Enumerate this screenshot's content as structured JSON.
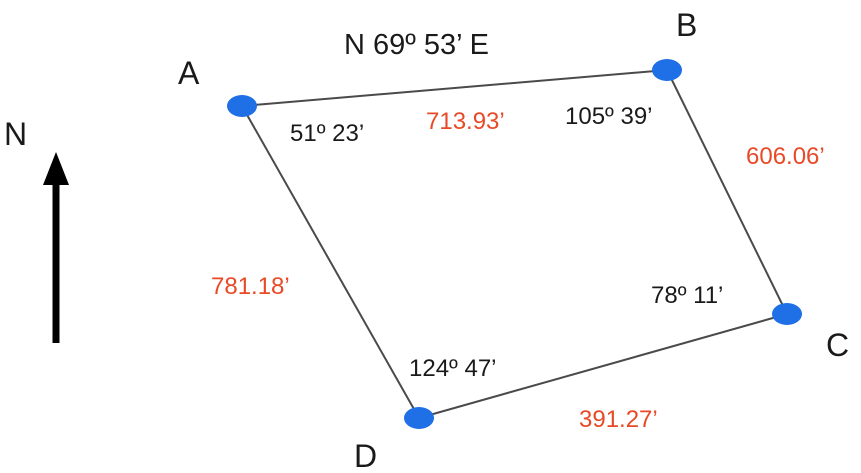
{
  "bearing": "N 69º 53’ E",
  "north_label": "N",
  "colors": {
    "edge": "#4a4a4a",
    "vertex": "#1f6fe6",
    "distance": "#e84a27",
    "text": "#1a1a1a",
    "arrow": "#000000"
  },
  "vertices": [
    {
      "id": "A",
      "label": "A"
    },
    {
      "id": "B",
      "label": "B"
    },
    {
      "id": "C",
      "label": "C"
    },
    {
      "id": "D",
      "label": "D"
    }
  ],
  "angles": [
    {
      "vertex": "A",
      "text": "51º 23’"
    },
    {
      "vertex": "B",
      "text": "105º 39’"
    },
    {
      "vertex": "C",
      "text": "78º 11’"
    },
    {
      "vertex": "D",
      "text": "124º 47’"
    }
  ],
  "distances": [
    {
      "edge": "A-B",
      "text": "713.93’"
    },
    {
      "edge": "B-C",
      "text": "606.06’"
    },
    {
      "edge": "C-D",
      "text": "391.27’"
    },
    {
      "edge": "D-A",
      "text": "781.18’"
    }
  ]
}
